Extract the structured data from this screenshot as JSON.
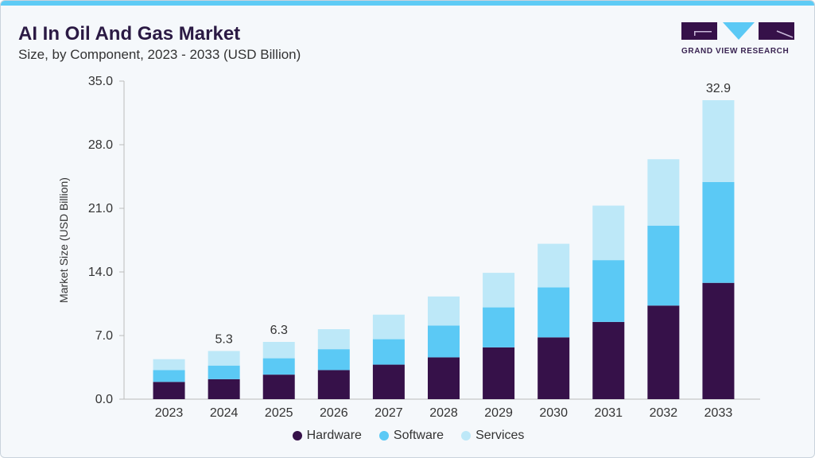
{
  "header": {
    "title": "AI In Oil And Gas Market",
    "subtitle": "Size, by Component, 2023 - 2033 (USD Billion)"
  },
  "logo": {
    "text": "GRAND VIEW RESEARCH"
  },
  "chart_data": {
    "type": "bar",
    "stacked": true,
    "categories": [
      "2023",
      "2024",
      "2025",
      "2026",
      "2027",
      "2028",
      "2029",
      "2030",
      "2031",
      "2032",
      "2033"
    ],
    "series": [
      {
        "name": "Hardware",
        "color": "#361149",
        "values": [
          1.9,
          2.2,
          2.7,
          3.2,
          3.8,
          4.6,
          5.7,
          6.8,
          8.5,
          10.3,
          12.8
        ]
      },
      {
        "name": "Software",
        "color": "#5bc9f5",
        "values": [
          1.3,
          1.5,
          1.8,
          2.3,
          2.8,
          3.5,
          4.4,
          5.5,
          6.8,
          8.8,
          11.1
        ]
      },
      {
        "name": "Services",
        "color": "#bde8f8",
        "values": [
          1.2,
          1.6,
          1.8,
          2.2,
          2.7,
          3.2,
          3.8,
          4.8,
          6.0,
          7.3,
          9.0
        ]
      }
    ],
    "data_labels": {
      "2024": "5.3",
      "2025": "6.3",
      "2033": "32.9"
    },
    "ylabel": "Market Size (USD Billion)",
    "xlabel": "",
    "ylim": [
      0,
      35
    ],
    "yticks": [
      "0.0",
      "7.0",
      "14.0",
      "21.0",
      "28.0",
      "35.0"
    ],
    "grid": false,
    "legend_position": "bottom"
  }
}
